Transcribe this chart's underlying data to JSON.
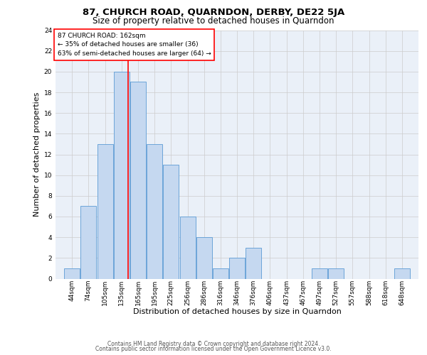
{
  "title": "87, CHURCH ROAD, QUARNDON, DERBY, DE22 5JA",
  "subtitle": "Size of property relative to detached houses in Quarndon",
  "xlabel": "Distribution of detached houses by size in Quarndon",
  "ylabel": "Number of detached properties",
  "bar_labels": [
    "44sqm",
    "74sqm",
    "105sqm",
    "135sqm",
    "165sqm",
    "195sqm",
    "225sqm",
    "256sqm",
    "286sqm",
    "316sqm",
    "346sqm",
    "376sqm",
    "406sqm",
    "437sqm",
    "467sqm",
    "497sqm",
    "527sqm",
    "557sqm",
    "588sqm",
    "618sqm",
    "648sqm"
  ],
  "bar_values": [
    1,
    7,
    13,
    20,
    19,
    13,
    11,
    6,
    4,
    1,
    2,
    3,
    0,
    0,
    0,
    1,
    1,
    0,
    0,
    0,
    1
  ],
  "bar_color": "#c5d8f0",
  "bar_edge_color": "#5b9bd5",
  "bin_starts": [
    44,
    74,
    105,
    135,
    165,
    195,
    225,
    256,
    286,
    316,
    346,
    376,
    406,
    437,
    467,
    497,
    527,
    557,
    588,
    618,
    648
  ],
  "bin_size": 30,
  "red_line_x": 162,
  "annotation_text_line1": "87 CHURCH ROAD: 162sqm",
  "annotation_text_line2": "← 35% of detached houses are smaller (36)",
  "annotation_text_line3": "63% of semi-detached houses are larger (64) →",
  "annotation_box_color": "white",
  "annotation_box_edge_color": "red",
  "red_line_color": "red",
  "grid_color": "#cccccc",
  "background_color": "#eaf0f8",
  "ylim": [
    0,
    24
  ],
  "yticks": [
    0,
    2,
    4,
    6,
    8,
    10,
    12,
    14,
    16,
    18,
    20,
    22,
    24
  ],
  "footer_line1": "Contains HM Land Registry data © Crown copyright and database right 2024.",
  "footer_line2": "Contains public sector information licensed under the Open Government Licence v3.0.",
  "title_fontsize": 9.5,
  "subtitle_fontsize": 8.5,
  "ylabel_fontsize": 8,
  "xlabel_fontsize": 8,
  "tick_fontsize": 6.5,
  "annotation_fontsize": 6.5,
  "footer_fontsize": 5.5
}
